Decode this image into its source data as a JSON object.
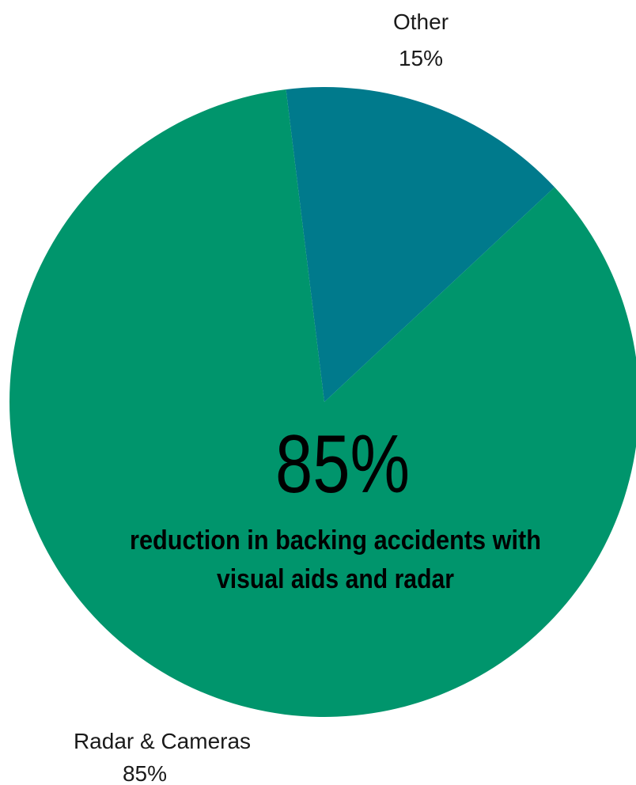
{
  "chart_data": {
    "type": "pie",
    "slices": [
      {
        "label": "Other",
        "value": 15,
        "value_label": "15%",
        "color": "#007a8c"
      },
      {
        "label": "Radar & Cameras",
        "value": 85,
        "value_label": "85%",
        "color": "#00956c"
      }
    ],
    "center_annotation": {
      "headline": "85%",
      "line1": "reduction in backing accidents with",
      "line2": "visual aids and radar"
    }
  }
}
